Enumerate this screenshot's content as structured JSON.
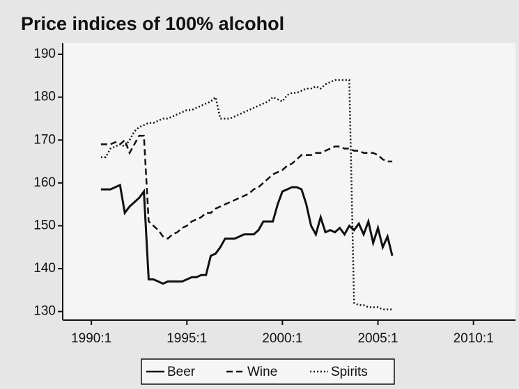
{
  "chart_data": {
    "type": "line",
    "title": "Price indices of 100% alcohol",
    "x": [
      1990.5,
      1990.75,
      1991,
      1991.25,
      1991.5,
      1991.75,
      1992,
      1992.25,
      1992.5,
      1992.75,
      1993,
      1993.25,
      1993.5,
      1993.75,
      1994,
      1994.25,
      1994.5,
      1994.75,
      1995,
      1995.25,
      1995.5,
      1995.75,
      1996,
      1996.25,
      1996.5,
      1996.75,
      1997,
      1997.25,
      1997.5,
      1997.75,
      1998,
      1998.25,
      1998.5,
      1998.75,
      1999,
      1999.25,
      1999.5,
      1999.75,
      2000,
      2000.25,
      2000.5,
      2000.75,
      2001,
      2001.25,
      2001.5,
      2001.75,
      2002,
      2002.25,
      2002.5,
      2002.75,
      2003,
      2003.25,
      2003.5,
      2003.75,
      2004,
      2004.25,
      2004.5,
      2004.75,
      2005,
      2005.25,
      2005.5,
      2005.75
    ],
    "series": [
      {
        "name": "Beer",
        "color": "#111111",
        "style": "solid",
        "values": [
          158.5,
          158.5,
          158.5,
          159,
          159.5,
          153,
          154.5,
          155.5,
          156.5,
          158,
          137.5,
          137.5,
          137,
          136.5,
          137,
          137,
          137,
          137,
          137.5,
          138,
          138,
          138.5,
          138.5,
          143,
          143.5,
          145,
          147,
          147,
          147,
          147.5,
          148,
          148,
          148,
          149,
          151,
          151,
          151,
          155,
          158,
          158.5,
          159,
          159,
          158.5,
          155,
          150,
          148,
          152,
          148.5,
          149,
          148.5,
          149.5,
          148,
          150,
          149,
          150.5,
          148,
          151,
          146,
          149.5,
          145,
          147.5,
          143
        ]
      },
      {
        "name": "Wine",
        "color": "#111111",
        "style": "dashed",
        "values": [
          169,
          169,
          169,
          169.5,
          169,
          170,
          167,
          169,
          171,
          171,
          151,
          150,
          149,
          147.5,
          147,
          148,
          148.5,
          149.5,
          150,
          151,
          151.5,
          152,
          153,
          153,
          154,
          154.5,
          155,
          155.5,
          156,
          156.5,
          157,
          157.5,
          158.5,
          159,
          160,
          161,
          162,
          162.5,
          163,
          164,
          164.5,
          165.5,
          166.5,
          166.5,
          166.5,
          167,
          167,
          167.5,
          168,
          168.5,
          168.5,
          168,
          168,
          167.5,
          167.5,
          167,
          167,
          167,
          166.5,
          165.5,
          165,
          165
        ]
      },
      {
        "name": "Spirits",
        "color": "#111111",
        "style": "dotted",
        "values": [
          166,
          166,
          168,
          168.5,
          169,
          168.5,
          170,
          172,
          173,
          173.5,
          174,
          174,
          174.5,
          175,
          175,
          175.5,
          176,
          176.5,
          177,
          177,
          177.5,
          178,
          178.5,
          179,
          180,
          175,
          175,
          175,
          175.5,
          176,
          176.5,
          177,
          177.5,
          178,
          178.5,
          179,
          180,
          179.5,
          179,
          180.5,
          181,
          181,
          181.5,
          182,
          182,
          182.5,
          182,
          183,
          183.5,
          184,
          184,
          184,
          184,
          132,
          131.5,
          131.5,
          131,
          131,
          131,
          130.5,
          130.5,
          130.5
        ]
      }
    ],
    "xlim": [
      1988.5,
      2012.2
    ],
    "xticks": [
      {
        "value": 1990,
        "label": "1990:1"
      },
      {
        "value": 1995,
        "label": "1995:1"
      },
      {
        "value": 2000,
        "label": "2000:1"
      },
      {
        "value": 2005,
        "label": "2005:1"
      },
      {
        "value": 2010,
        "label": "2010:1"
      }
    ],
    "ylim": [
      128,
      192.6
    ],
    "yticks": [
      130,
      140,
      150,
      160,
      170,
      180,
      190
    ],
    "legend": "bottom"
  }
}
